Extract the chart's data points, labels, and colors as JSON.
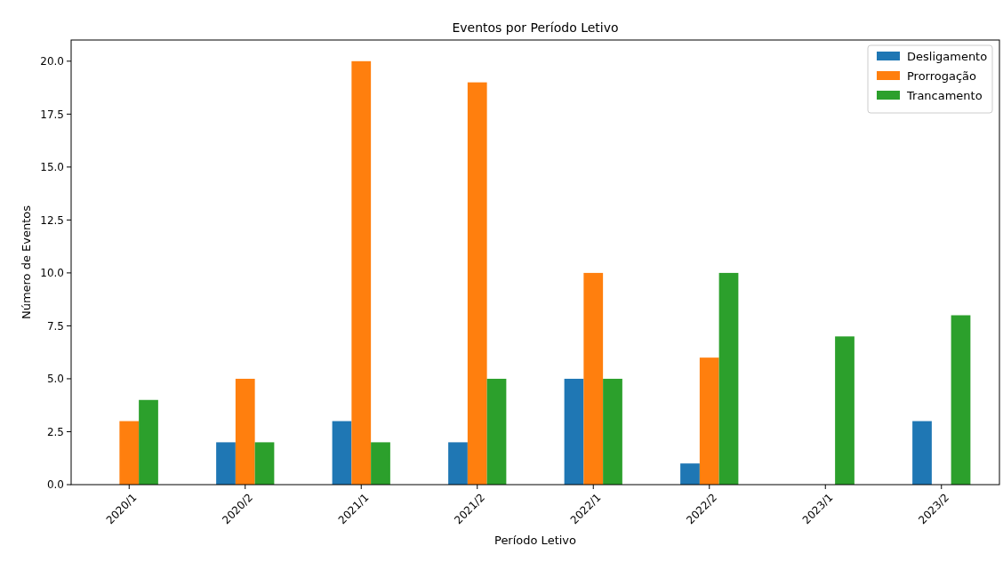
{
  "chart_data": {
    "type": "bar",
    "title": "Eventos por Período Letivo",
    "xlabel": "Período Letivo",
    "ylabel": "Número de Eventos",
    "categories": [
      "2020/1",
      "2020/2",
      "2021/1",
      "2021/2",
      "2022/1",
      "2022/2",
      "2023/1",
      "2023/2"
    ],
    "series": [
      {
        "name": "Desligamento",
        "color": "#1f77b4",
        "values": [
          0,
          2,
          3,
          2,
          5,
          1,
          0,
          3
        ]
      },
      {
        "name": "Prorrogação",
        "color": "#ff7f0e",
        "values": [
          3,
          5,
          20,
          19,
          10,
          6,
          0,
          0
        ]
      },
      {
        "name": "Trancamento",
        "color": "#2ca02c",
        "values": [
          4,
          2,
          2,
          5,
          5,
          10,
          7,
          8
        ]
      }
    ],
    "ylim": [
      0,
      21
    ],
    "yticks": [
      {
        "value": 0,
        "label": "0.0"
      },
      {
        "value": 2.5,
        "label": "2.5"
      },
      {
        "value": 5,
        "label": "5.0"
      },
      {
        "value": 7.5,
        "label": "7.5"
      },
      {
        "value": 10,
        "label": "10.0"
      },
      {
        "value": 12.5,
        "label": "12.5"
      },
      {
        "value": 15,
        "label": "15.0"
      },
      {
        "value": 17.5,
        "label": "17.5"
      },
      {
        "value": 20,
        "label": "20.0"
      }
    ],
    "legend": "top right",
    "grid": false
  }
}
